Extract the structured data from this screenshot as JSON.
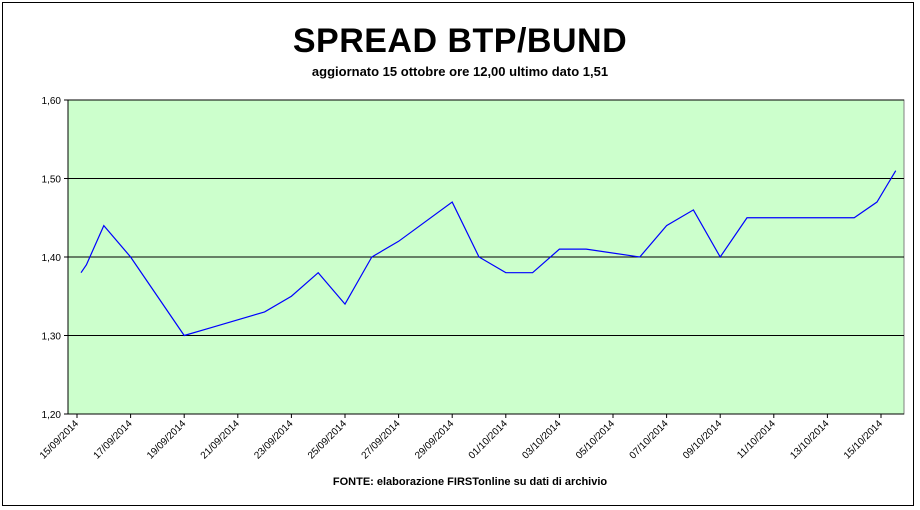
{
  "chart_data": {
    "type": "line",
    "title": "SPREAD BTP/BUND",
    "subtitle": "aggiornato 15 ottobre ore 12,00 ultimo dato 1,51",
    "source": "FONTE: elaborazione FIRSTonline su dati di archivio",
    "xlabel": "",
    "ylabel": "",
    "ylim": [
      1.2,
      1.6
    ],
    "y_ticks": [
      1.2,
      1.3,
      1.4,
      1.5,
      1.6
    ],
    "y_tick_labels": [
      "1,20",
      "1,30",
      "1,40",
      "1,50",
      "1,60"
    ],
    "x_tick_labels": [
      "15/09/2014",
      "17/09/2014",
      "19/09/2014",
      "21/09/2014",
      "23/09/2014",
      "25/09/2014",
      "27/09/2014",
      "29/09/2014",
      "01/10/2014",
      "03/10/2014",
      "05/10/2014",
      "07/10/2014",
      "09/10/2014",
      "11/10/2014",
      "13/10/2014",
      "15/10/2014"
    ],
    "grid": true,
    "plot_background": "#ccffcc",
    "line_color": "#0000ff",
    "series": [
      {
        "x": [
          "15/09/2014",
          "15/09/2014",
          "16/09/2014",
          "17/09/2014",
          "18/09/2014",
          "19/09/2014",
          "20/09/2014",
          "22/09/2014",
          "23/09/2014",
          "24/09/2014",
          "25/09/2014",
          "26/09/2014",
          "27/09/2014",
          "29/09/2014",
          "30/09/2014",
          "01/10/2014",
          "02/10/2014",
          "03/10/2014",
          "04/10/2014",
          "06/10/2014",
          "07/10/2014",
          "08/10/2014",
          "09/10/2014",
          "10/10/2014",
          "11/10/2014",
          "14/10/2014",
          "15/10/2014",
          "15/10/2014"
        ],
        "values": [
          1.38,
          1.39,
          1.44,
          1.4,
          1.35,
          1.3,
          1.31,
          1.33,
          1.35,
          1.38,
          1.34,
          1.4,
          1.42,
          1.47,
          1.4,
          1.38,
          1.38,
          1.41,
          1.41,
          1.4,
          1.44,
          1.46,
          1.4,
          1.45,
          1.45,
          1.45,
          1.47,
          1.51
        ]
      }
    ]
  }
}
